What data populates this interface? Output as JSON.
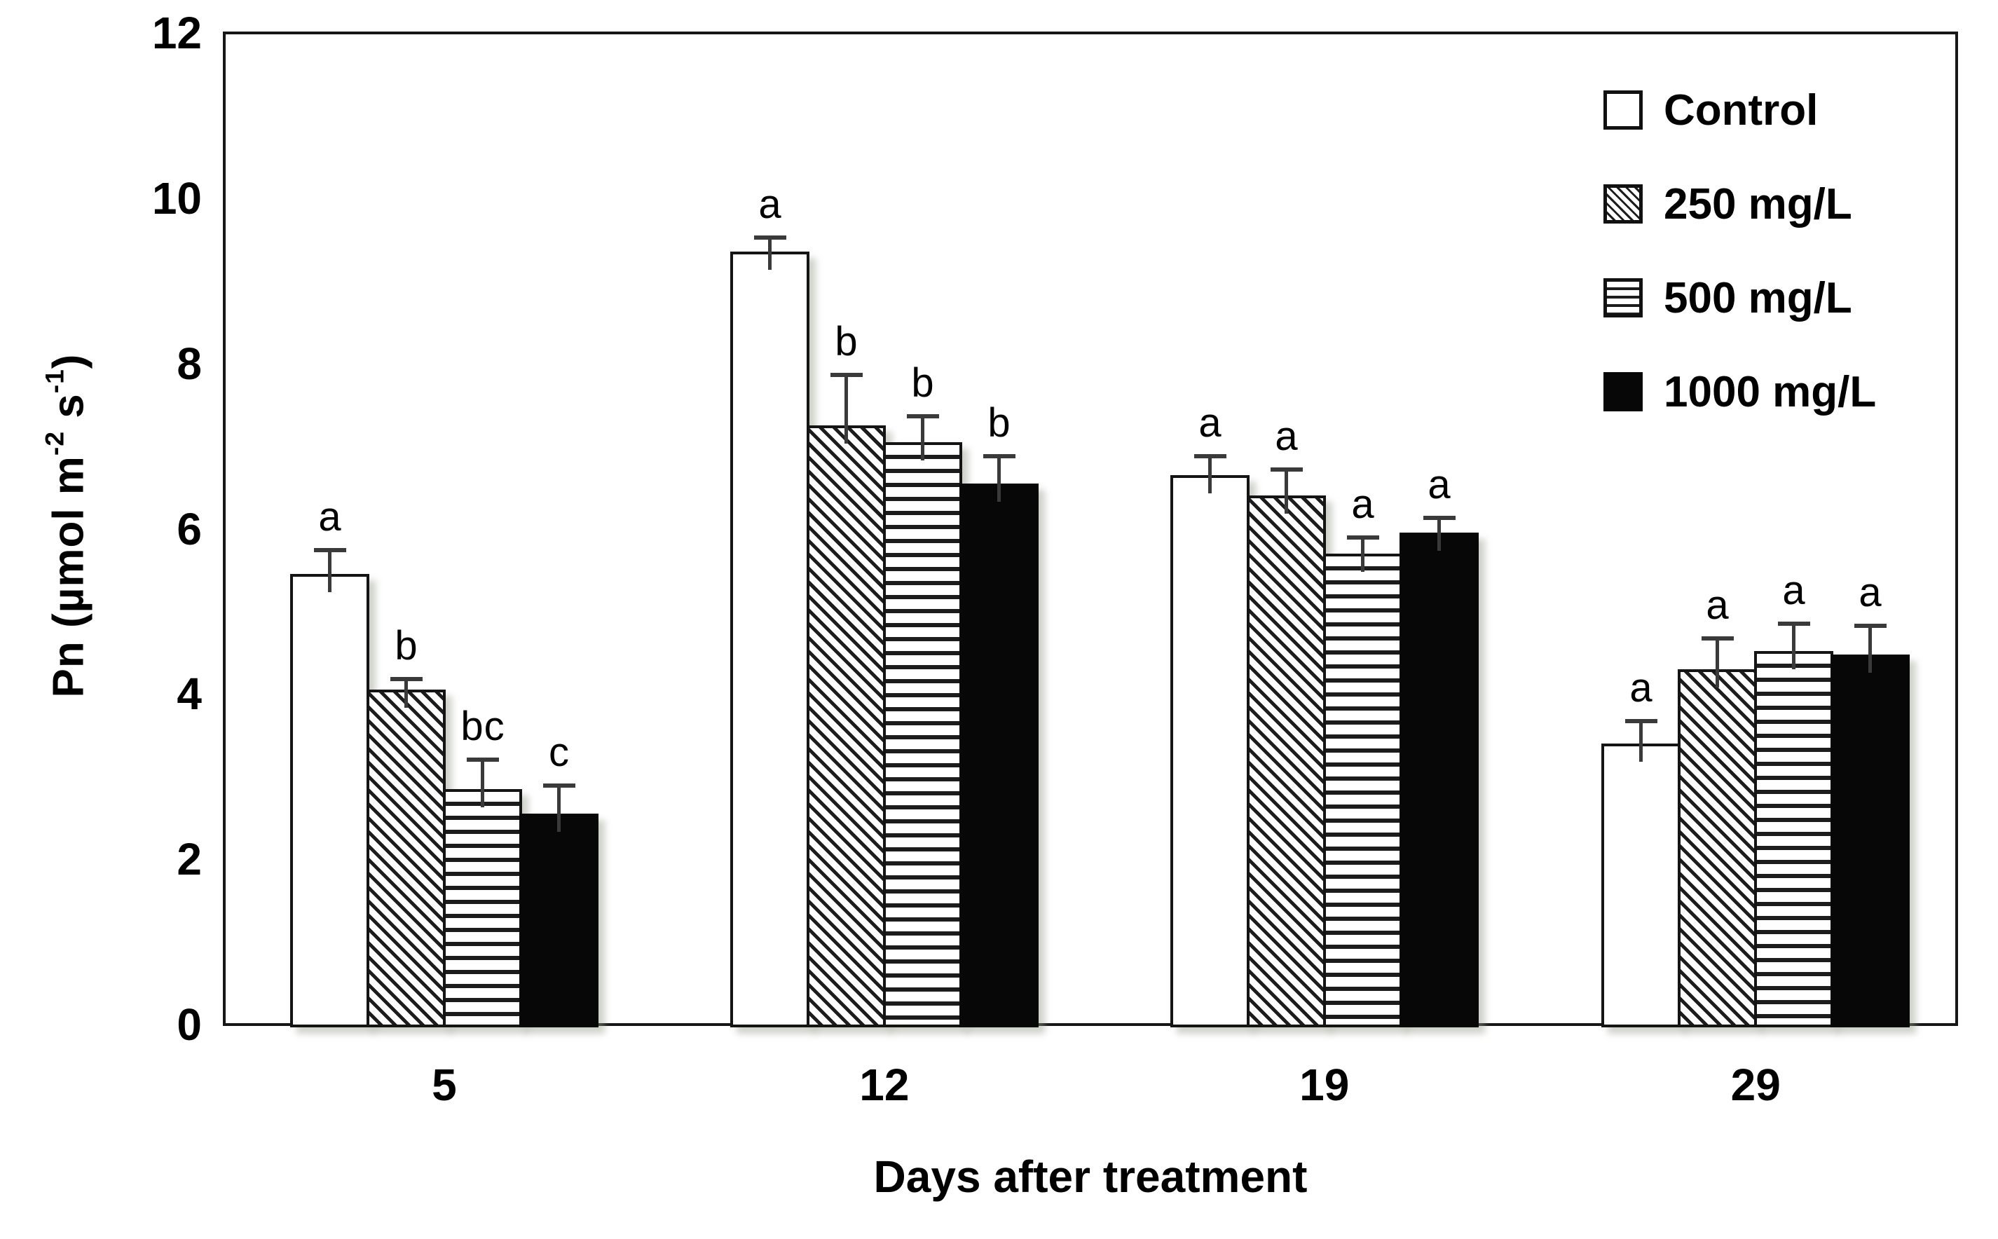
{
  "figure": {
    "background": "#ffffff",
    "ink_color": "#000000",
    "error_bar_color": "#3a3a3a",
    "shadow_color": "rgba(148,156,138,0.45)"
  },
  "axes": {
    "y_label_main": "Pn (µmol m",
    "y_label_sup1": "-2",
    "y_label_mid": " s",
    "y_label_sup2": "-1",
    "y_label_end": ")",
    "x_label": "Days after treatment"
  },
  "chart_data": {
    "type": "bar",
    "title": "",
    "xlabel": "Days after treatment",
    "ylabel": "Pn (µmol m-2 s-1)",
    "ylim": [
      0,
      12
    ],
    "y_ticks": [
      0,
      2,
      4,
      6,
      8,
      10,
      12
    ],
    "grid": false,
    "legend_position": "top-right",
    "categories": [
      "5",
      "12",
      "19",
      "29"
    ],
    "series": [
      {
        "name": "Control",
        "pattern": "plain",
        "values": [
          5.45,
          9.35,
          6.65,
          3.4
        ],
        "errors": [
          0.32,
          0.2,
          0.25,
          0.3
        ],
        "letters": [
          "a",
          "a",
          "a",
          "a"
        ]
      },
      {
        "name": "250 mg/L",
        "pattern": "hatch",
        "values": [
          4.05,
          7.25,
          6.4,
          4.3
        ],
        "errors": [
          0.16,
          0.64,
          0.34,
          0.4
        ],
        "letters": [
          "b",
          "b",
          "a",
          "a"
        ]
      },
      {
        "name": "500 mg/L",
        "pattern": "hstripe",
        "values": [
          2.85,
          7.05,
          5.7,
          4.52
        ],
        "errors": [
          0.38,
          0.34,
          0.22,
          0.36
        ],
        "letters": [
          "bc",
          "b",
          "a",
          "a"
        ]
      },
      {
        "name": "1000 mg/L",
        "pattern": "solid",
        "values": [
          2.55,
          6.55,
          5.95,
          4.48
        ],
        "errors": [
          0.37,
          0.35,
          0.21,
          0.37
        ],
        "letters": [
          "c",
          "b",
          "a",
          "a"
        ]
      }
    ]
  }
}
